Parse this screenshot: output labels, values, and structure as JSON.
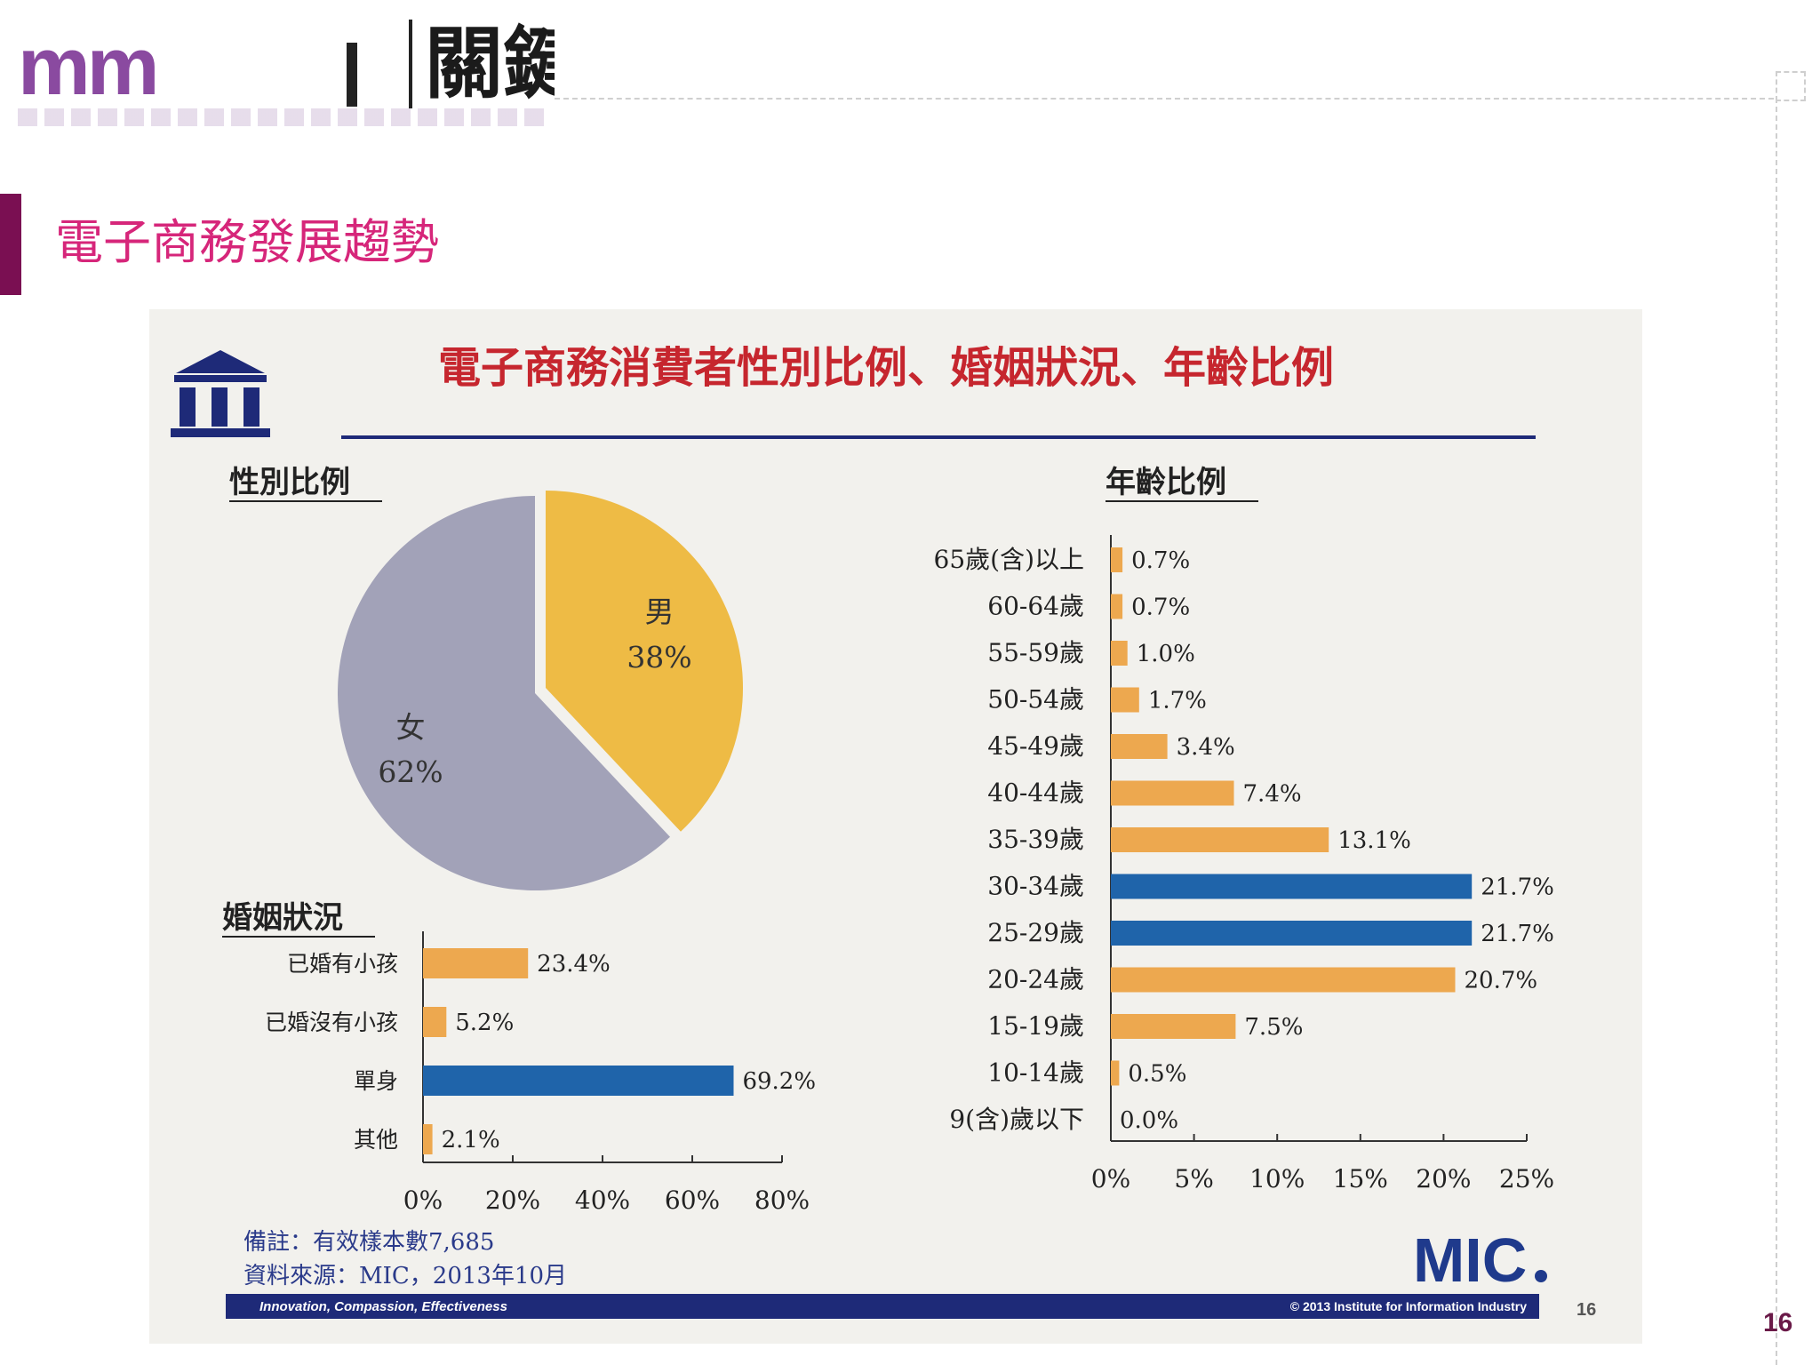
{
  "header": {
    "logo_text": "mm",
    "logo_cn": "關鍵"
  },
  "page": {
    "title": "電子商務發展趨勢",
    "number": "16"
  },
  "colors": {
    "orange": "#eda84f",
    "blue": "#1f64aa",
    "pie_male": "#eebb45",
    "pie_female": "#a2a2b8",
    "title_pink": "#d6267a",
    "brand_navy": "#1e2a78"
  },
  "panel": {
    "chart_title": "電子商務消費者性別比例、婚姻狀況、年齡比例",
    "note_line1": "備註：有效樣本數7,685",
    "note_line2": "資料來源：MIC，2013年10月",
    "mic_logo": "MIC",
    "footer_left": "Innovation, Compassion, Effectiveness",
    "footer_right": "© 2013 Institute for Information Industry",
    "slide_number": "16"
  },
  "chart_data": [
    {
      "type": "pie",
      "title": "性別比例",
      "slices": [
        {
          "name": "男",
          "value": 38,
          "label": "38%",
          "color": "#eebb45"
        },
        {
          "name": "女",
          "value": 62,
          "label": "62%",
          "color": "#a2a2b8"
        }
      ]
    },
    {
      "type": "bar",
      "orientation": "horizontal",
      "title": "婚姻狀況",
      "categories": [
        "已婚有小孩",
        "已婚沒有小孩",
        "單身",
        "其他"
      ],
      "values": [
        23.4,
        5.2,
        69.2,
        2.1
      ],
      "labels": [
        "23.4%",
        "5.2%",
        "69.2%",
        "2.1%"
      ],
      "highlight": [
        false,
        false,
        true,
        false
      ],
      "xlim": [
        0,
        80
      ],
      "ticks": [
        "0%",
        "20%",
        "40%",
        "60%",
        "80%"
      ]
    },
    {
      "type": "bar",
      "orientation": "horizontal",
      "title": "年齡比例",
      "categories": [
        "65歲(含)以上",
        "60-64歲",
        "55-59歲",
        "50-54歲",
        "45-49歲",
        "40-44歲",
        "35-39歲",
        "30-34歲",
        "25-29歲",
        "20-24歲",
        "15-19歲",
        "10-14歲",
        "9(含)歲以下"
      ],
      "values": [
        0.7,
        0.7,
        1.0,
        1.7,
        3.4,
        7.4,
        13.1,
        21.7,
        21.7,
        20.7,
        7.5,
        0.5,
        0.0
      ],
      "labels": [
        "0.7%",
        "0.7%",
        "1.0%",
        "1.7%",
        "3.4%",
        "7.4%",
        "13.1%",
        "21.7%",
        "21.7%",
        "20.7%",
        "7.5%",
        "0.5%",
        "0.0%"
      ],
      "highlight": [
        false,
        false,
        false,
        false,
        false,
        false,
        false,
        true,
        true,
        false,
        false,
        false,
        false
      ],
      "xlim": [
        0,
        25
      ],
      "ticks": [
        "0%",
        "5%",
        "10%",
        "15%",
        "20%",
        "25%"
      ]
    }
  ]
}
